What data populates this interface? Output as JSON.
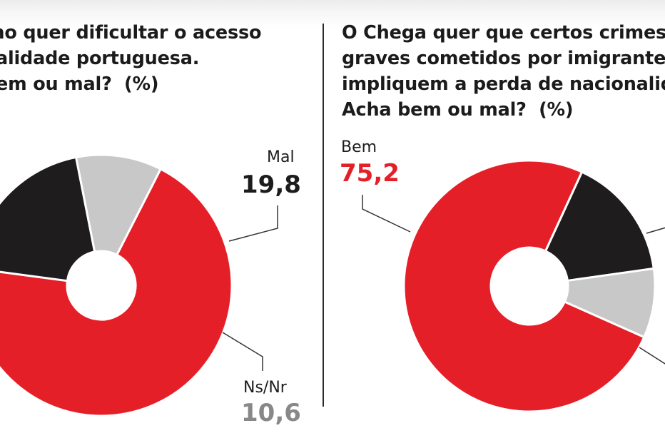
{
  "colors": {
    "bem": "#e51f27",
    "mal": "#1e1c1d",
    "nsnr": "#c8c8c8",
    "nsnr_value": "#888888"
  },
  "chart_data": [
    {
      "type": "pie",
      "title": "rno quer dificultar o acesso\nnalidade portuguesa.\nbem ou mal?  (%)",
      "slices": [
        {
          "label": "",
          "value": 69.6,
          "color": "#e51f27"
        },
        {
          "label": "Mal",
          "value": 19.8,
          "display": "19,8",
          "color": "#1e1c1d"
        },
        {
          "label": "Ns/Nr",
          "value": 10.6,
          "display": "10,6",
          "color": "#c8c8c8"
        }
      ]
    },
    {
      "type": "pie",
      "title": "O Chega quer que certos crimes\ngraves cometidos por imigrante\nimpliquem a perda de nacionalid\nAcha bem ou mal?  (%)",
      "slices": [
        {
          "label": "Bem",
          "value": 75.2,
          "display": "75,2",
          "color": "#e51f27"
        },
        {
          "label": "",
          "value": 15.9,
          "color": "#1e1c1d"
        },
        {
          "label": "",
          "value": 8.9,
          "color": "#c8c8c8"
        }
      ]
    }
  ]
}
